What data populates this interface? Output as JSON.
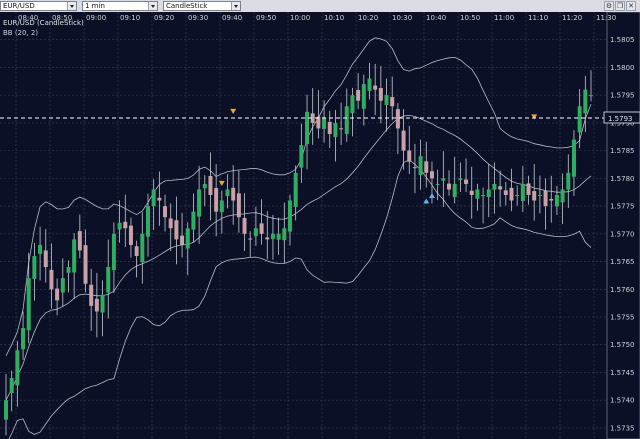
{
  "toolbar": {
    "symbol": "EUR/USD",
    "timeframe": "1 min",
    "chart_type": "CandleStick",
    "icons": [
      "settings-icon",
      "restore-icon",
      "close-icon"
    ]
  },
  "chart": {
    "title": "EUR/USD (CandleStick)",
    "indicator": "BB (20, 2)",
    "current_price": "1.5793",
    "time_labels": [
      "08:40",
      "08:50",
      "09:00",
      "09:10",
      "09:20",
      "09:30",
      "09:40",
      "09:50",
      "10:00",
      "10:10",
      "10:20",
      "10:30",
      "10:40",
      "10:50",
      "11:00",
      "11:10",
      "11:20",
      "11:30"
    ],
    "price_labels": [
      "1.5805",
      "1.5800",
      "1.5795",
      "1.5790",
      "1.5785",
      "1.5780",
      "1.5775",
      "1.5770",
      "1.5765",
      "1.5760",
      "1.5755",
      "1.5750",
      "1.5745",
      "1.5740",
      "1.5735"
    ],
    "colors": {
      "background": "#0b1026",
      "grid": "#3a4258",
      "up_candle": "#2fae62",
      "down_candle": "#c9a2a8",
      "wick": "#c8ccd4",
      "band": "#b8bcc6",
      "price_line": "#ffffff",
      "sell_marker": "#f2a43a",
      "buy_marker": "#5fb6ef"
    }
  },
  "chart_data": {
    "type": "candlestick",
    "title": "EUR/USD (CandleStick)",
    "xlabel": "",
    "ylabel": "",
    "ylim": [
      1.5733,
      1.581
    ],
    "grid": true,
    "x_ticks": [
      "08:40",
      "08:50",
      "09:00",
      "09:10",
      "09:20",
      "09:30",
      "09:40",
      "09:50",
      "10:00",
      "10:10",
      "10:20",
      "10:30",
      "10:40",
      "10:50",
      "11:00",
      "11:10",
      "11:20",
      "11:30"
    ],
    "close_path": [
      1.574,
      1.5744,
      1.5749,
      1.5753,
      1.5762,
      1.5766,
      1.5768,
      1.5764,
      1.576,
      1.5758,
      1.5762,
      1.5764,
      1.5769,
      1.5767,
      1.5761,
      1.5757,
      1.5756,
      1.5759,
      1.5764,
      1.577,
      1.5772,
      1.5771,
      1.5768,
      1.5766,
      1.577,
      1.5775,
      1.5778,
      1.5776,
      1.5773,
      1.5771,
      1.5769,
      1.5768,
      1.5771,
      1.5774,
      1.5778,
      1.5779,
      1.5777,
      1.5774,
      1.5776,
      1.5778,
      1.5776,
      1.5773,
      1.577,
      1.5769,
      1.5771,
      1.577,
      1.5769,
      1.577,
      1.577,
      1.5771,
      1.5776,
      1.5781,
      1.5786,
      1.5792,
      1.579,
      1.5789,
      1.5791,
      1.5788,
      1.579,
      1.5789,
      1.5793,
      1.5795,
      1.5794,
      1.5797,
      1.5798,
      1.5796,
      1.5794,
      1.5795,
      1.5793,
      1.5789,
      1.5785,
      1.5783,
      1.5782,
      1.5784,
      1.5781,
      1.578,
      1.5779,
      1.578,
      1.5778,
      1.5779,
      1.578,
      1.5779,
      1.5777,
      1.5778,
      1.5777,
      1.5778,
      1.5779,
      1.5778,
      1.5777,
      1.5776,
      1.5777,
      1.5779,
      1.5777,
      1.5776,
      1.5777,
      1.5775,
      1.5776,
      1.5777,
      1.5778,
      1.5781,
      1.5787,
      1.5793,
      1.5796,
      1.5795
    ],
    "bollinger": {
      "period": 20,
      "deviation": 2
    },
    "current_price": 1.5793,
    "markers": [
      {
        "type": "sell",
        "time_index": 40,
        "price": 1.5792
      },
      {
        "type": "sell",
        "time_index": 38,
        "price": 1.5779
      },
      {
        "type": "buy",
        "time_index": 74,
        "price": 1.5776
      },
      {
        "type": "buy",
        "time_index": 75,
        "price": 1.5777
      },
      {
        "type": "sell",
        "time_index": 93,
        "price": 1.5791
      }
    ]
  }
}
